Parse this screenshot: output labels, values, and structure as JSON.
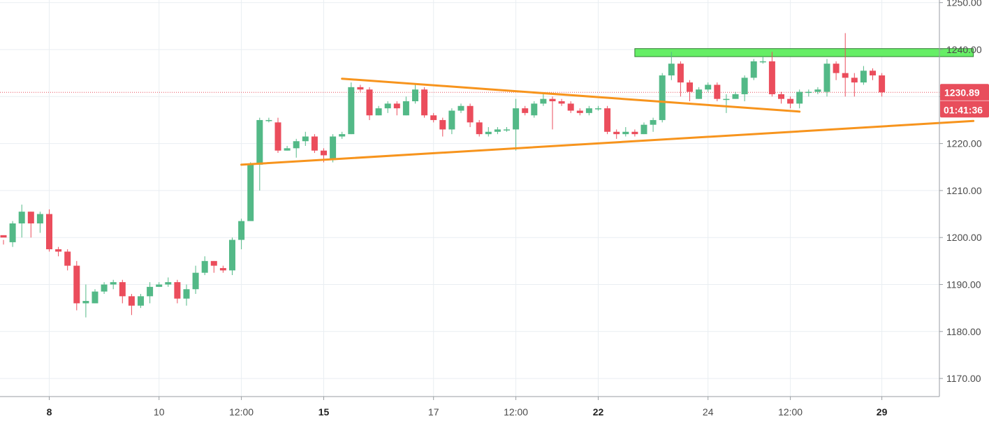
{
  "chart_data": {
    "type": "candlestick",
    "ylim": [
      1165,
      1251
    ],
    "y_ticks": [
      "1170.00",
      "1180.00",
      "1190.00",
      "1200.00",
      "1210.00",
      "1220.00",
      "1230.00",
      "1240.00",
      "1250.00"
    ],
    "x_ticks": [
      {
        "label": "8",
        "bold": true,
        "index": 5
      },
      {
        "label": "10",
        "bold": false,
        "index": 17
      },
      {
        "label": "12:00",
        "bold": false,
        "index": 26
      },
      {
        "label": "15",
        "bold": true,
        "index": 35
      },
      {
        "label": "17",
        "bold": false,
        "index": 47
      },
      {
        "label": "12:00",
        "bold": false,
        "index": 56
      },
      {
        "label": "22",
        "bold": true,
        "index": 65
      },
      {
        "label": "24",
        "bold": false,
        "index": 77
      },
      {
        "label": "12:00",
        "bold": false,
        "index": 86
      },
      {
        "label": "29",
        "bold": true,
        "index": 96
      }
    ],
    "candles": [
      [
        1200.5,
        1200,
        1199.5,
        1198.5
      ],
      [
        1199,
        1203,
        1203.5,
        1198
      ],
      [
        1203,
        1205.5,
        1207,
        1200
      ],
      [
        1205.5,
        1203,
        1205.5,
        1200
      ],
      [
        1203,
        1205,
        1205.5,
        1201
      ],
      [
        1205,
        1197.5,
        1206,
        1197
      ],
      [
        1197.5,
        1197,
        1198,
        1196
      ],
      [
        1197,
        1194,
        1197.5,
        1193
      ],
      [
        1194,
        1186,
        1195,
        1184.5
      ],
      [
        1186,
        1186.5,
        1190,
        1183
      ],
      [
        1186,
        1188.5,
        1189,
        1186
      ],
      [
        1188.5,
        1190,
        1190.5,
        1188
      ],
      [
        1190,
        1190.5,
        1191,
        1189
      ],
      [
        1190.5,
        1187.5,
        1191,
        1186
      ],
      [
        1187.5,
        1185.5,
        1188,
        1183.5
      ],
      [
        1185.5,
        1187.5,
        1188,
        1185
      ],
      [
        1187.5,
        1189.5,
        1190.5,
        1186
      ],
      [
        1189.5,
        1190,
        1190.5,
        1189.5
      ],
      [
        1190,
        1190.5,
        1191.5,
        1189.5
      ],
      [
        1190.5,
        1187,
        1191,
        1186
      ],
      [
        1187,
        1189,
        1190,
        1185.5
      ],
      [
        1189,
        1192.5,
        1194,
        1188
      ],
      [
        1192.5,
        1195,
        1196,
        1192
      ],
      [
        1195,
        1194,
        1195,
        1192.5
      ],
      [
        1193.5,
        1193,
        1194,
        1192.5
      ],
      [
        1193,
        1199.5,
        1200,
        1192
      ],
      [
        1199.5,
        1203.5,
        1204,
        1197.5
      ],
      [
        1203.5,
        1215.5,
        1216,
        1205
      ],
      [
        1215.5,
        1225,
        1225.5,
        1210
      ],
      [
        1225,
        1225,
        1225.5,
        1224.5
      ],
      [
        1224.5,
        1218.5,
        1225.5,
        1218
      ],
      [
        1218.5,
        1219,
        1219.5,
        1218.5
      ],
      [
        1219,
        1220.5,
        1221,
        1217
      ],
      [
        1220.5,
        1221.5,
        1222.5,
        1219.5
      ],
      [
        1221.5,
        1218.5,
        1222,
        1218
      ],
      [
        1218.5,
        1217.5,
        1219,
        1216
      ],
      [
        1216.5,
        1221.5,
        1222,
        1216
      ],
      [
        1221.5,
        1222,
        1222.5,
        1221
      ],
      [
        1222,
        1232,
        1233,
        1222
      ],
      [
        1232,
        1231.5,
        1232.5,
        1231
      ],
      [
        1231.5,
        1226,
        1232,
        1225
      ],
      [
        1226,
        1227.5,
        1228,
        1226
      ],
      [
        1227.5,
        1228.5,
        1229,
        1226.5
      ],
      [
        1228.5,
        1227.5,
        1229,
        1226
      ],
      [
        1226,
        1229,
        1230,
        1226
      ],
      [
        1229,
        1231.5,
        1232.5,
        1228.5
      ],
      [
        1231.5,
        1226,
        1232,
        1225.5
      ],
      [
        1226,
        1225,
        1226.5,
        1224.5
      ],
      [
        1225,
        1223,
        1225.5,
        1221.5
      ],
      [
        1223,
        1227,
        1227.5,
        1222
      ],
      [
        1227,
        1228,
        1228.5,
        1226.5
      ],
      [
        1228,
        1224.5,
        1228.5,
        1223.5
      ],
      [
        1224.5,
        1222,
        1225,
        1221.5
      ],
      [
        1222,
        1222.5,
        1223.5,
        1221.5
      ],
      [
        1222.5,
        1223,
        1223.5,
        1222
      ],
      [
        1223,
        1223,
        1223.5,
        1222.5
      ],
      [
        1223,
        1227.5,
        1229.5,
        1218.5
      ],
      [
        1227.5,
        1226.5,
        1228,
        1226
      ],
      [
        1226,
        1228.5,
        1229,
        1225.5
      ],
      [
        1228.5,
        1229.5,
        1230.5,
        1228
      ],
      [
        1229.5,
        1229,
        1230,
        1223
      ],
      [
        1229,
        1228.5,
        1229.5,
        1228
      ],
      [
        1228.5,
        1227,
        1229,
        1226.5
      ],
      [
        1227,
        1226.5,
        1227.5,
        1226
      ],
      [
        1226.5,
        1227.5,
        1228,
        1226
      ],
      [
        1227.5,
        1227.5,
        1228,
        1227
      ],
      [
        1227.5,
        1222.5,
        1228,
        1222
      ],
      [
        1222.5,
        1222,
        1223,
        1221
      ],
      [
        1222,
        1222.5,
        1223.5,
        1221.5
      ],
      [
        1222.5,
        1222,
        1223,
        1221.5
      ],
      [
        1222,
        1224,
        1224.5,
        1222
      ],
      [
        1224,
        1225,
        1225.5,
        1222.5
      ],
      [
        1225,
        1234.5,
        1235,
        1224.5
      ],
      [
        1234.5,
        1237,
        1239.5,
        1233.5
      ],
      [
        1237,
        1233,
        1237.5,
        1230
      ],
      [
        1233,
        1231,
        1233.5,
        1229
      ],
      [
        1229.5,
        1231.5,
        1232,
        1229.5
      ],
      [
        1231.5,
        1232.5,
        1233,
        1231
      ],
      [
        1232.5,
        1229.5,
        1233,
        1229
      ],
      [
        1229.5,
        1229.5,
        1230.5,
        1226.5
      ],
      [
        1229.5,
        1230.5,
        1231,
        1229.5
      ],
      [
        1230.5,
        1234,
        1234.5,
        1229
      ],
      [
        1234,
        1237.5,
        1238,
        1233.5
      ],
      [
        1237.5,
        1237.5,
        1238.5,
        1237
      ],
      [
        1237.5,
        1230.5,
        1239.5,
        1230
      ],
      [
        1230.5,
        1229.5,
        1231,
        1228.5
      ],
      [
        1229.5,
        1228.5,
        1230,
        1227.5
      ],
      [
        1228.5,
        1231,
        1231.5,
        1227.5
      ],
      [
        1231,
        1231,
        1231.5,
        1230
      ],
      [
        1231,
        1231.5,
        1232,
        1230.5
      ],
      [
        1231,
        1237,
        1238,
        1230
      ],
      [
        1237,
        1235,
        1237.5,
        1233.5
      ],
      [
        1235,
        1234,
        1243.5,
        1230
      ],
      [
        1234,
        1233,
        1235,
        1230
      ],
      [
        1233,
        1235.5,
        1236.5,
        1232.5
      ],
      [
        1235.5,
        1234.5,
        1236,
        1233.5
      ],
      [
        1234.5,
        1230.9,
        1235,
        1230
      ]
    ],
    "drawings": {
      "resistance_zone": {
        "color": "#66ee66",
        "y_top": 1240.2,
        "y_bottom": 1238.5,
        "from_index": 69,
        "to_index": 106
      },
      "upper_trendline": {
        "color": "#f7941d",
        "from": [
          37,
          1233.8
        ],
        "to": [
          87,
          1226.8
        ]
      },
      "lower_trendline": {
        "color": "#f7941d",
        "from": [
          26,
          1215.5
        ],
        "to": [
          106,
          1224.8
        ]
      }
    },
    "current_price": {
      "value": "1230.89",
      "countdown": "01:41:36",
      "color": "#e84e5c"
    },
    "colors": {
      "up": "#53b987",
      "down": "#eb4d5c",
      "grid": "#e9eef2",
      "axis": "#9a9ea3"
    }
  }
}
